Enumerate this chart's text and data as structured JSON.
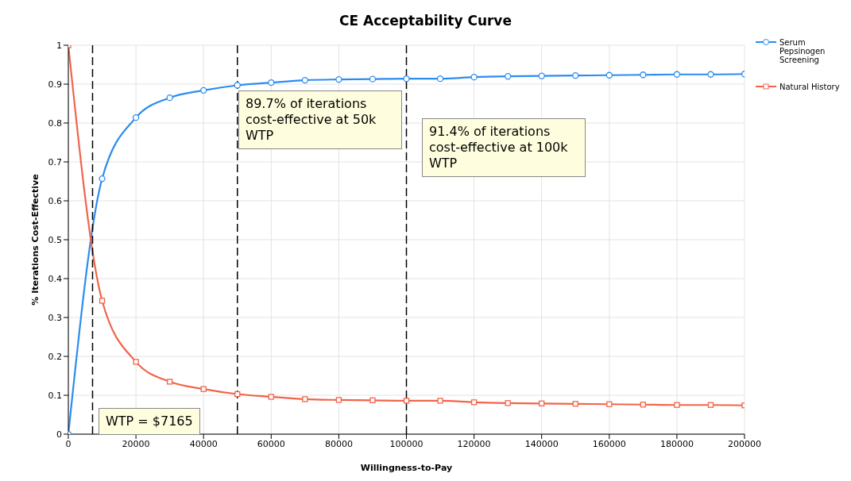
{
  "chart_data": {
    "type": "line",
    "title": "CE Acceptability Curve",
    "xlabel": "Willingness-to-Pay",
    "ylabel": "% Iterations Cost-Effective",
    "x": [
      0,
      10000,
      20000,
      30000,
      40000,
      50000,
      60000,
      70000,
      80000,
      90000,
      100000,
      110000,
      120000,
      130000,
      140000,
      150000,
      160000,
      170000,
      180000,
      190000,
      200000
    ],
    "series": [
      {
        "name": "Serum Pepsinogen Screening",
        "color": "#2b8cf0",
        "marker": "circle",
        "values": [
          0,
          0.657,
          0.814,
          0.865,
          0.884,
          0.897,
          0.904,
          0.91,
          0.912,
          0.913,
          0.914,
          0.914,
          0.918,
          0.92,
          0.921,
          0.922,
          0.923,
          0.924,
          0.925,
          0.925,
          0.926
        ]
      },
      {
        "name": "Natural History",
        "color": "#f2644a",
        "marker": "square",
        "values": [
          1,
          0.343,
          0.186,
          0.135,
          0.116,
          0.103,
          0.096,
          0.09,
          0.088,
          0.087,
          0.086,
          0.086,
          0.082,
          0.08,
          0.079,
          0.078,
          0.077,
          0.076,
          0.075,
          0.075,
          0.074
        ]
      }
    ],
    "xlim": [
      0,
      200000
    ],
    "xticks": [
      0,
      20000,
      40000,
      60000,
      80000,
      100000,
      120000,
      140000,
      160000,
      180000,
      200000
    ],
    "ylim": [
      0,
      1
    ],
    "yticks": [
      0,
      0.1,
      0.2,
      0.3,
      0.4,
      0.5,
      0.6,
      0.7,
      0.8,
      0.9,
      1
    ],
    "ref_lines": [
      {
        "axis": "x",
        "value": 7165,
        "color": "#000000",
        "line_style": "dashed"
      },
      {
        "axis": "x",
        "value": 50000,
        "color": "#000000",
        "line_style": "dashed"
      },
      {
        "axis": "x",
        "value": 100000,
        "color": "#000000",
        "line_style": "dashed"
      }
    ],
    "annotations": [
      "89.7% of iterations cost-effective at 50k WTP",
      "91.4% of iterations cost-effective at 100k WTP",
      "WTP = $7165"
    ],
    "grid": true,
    "legend": "top right"
  }
}
